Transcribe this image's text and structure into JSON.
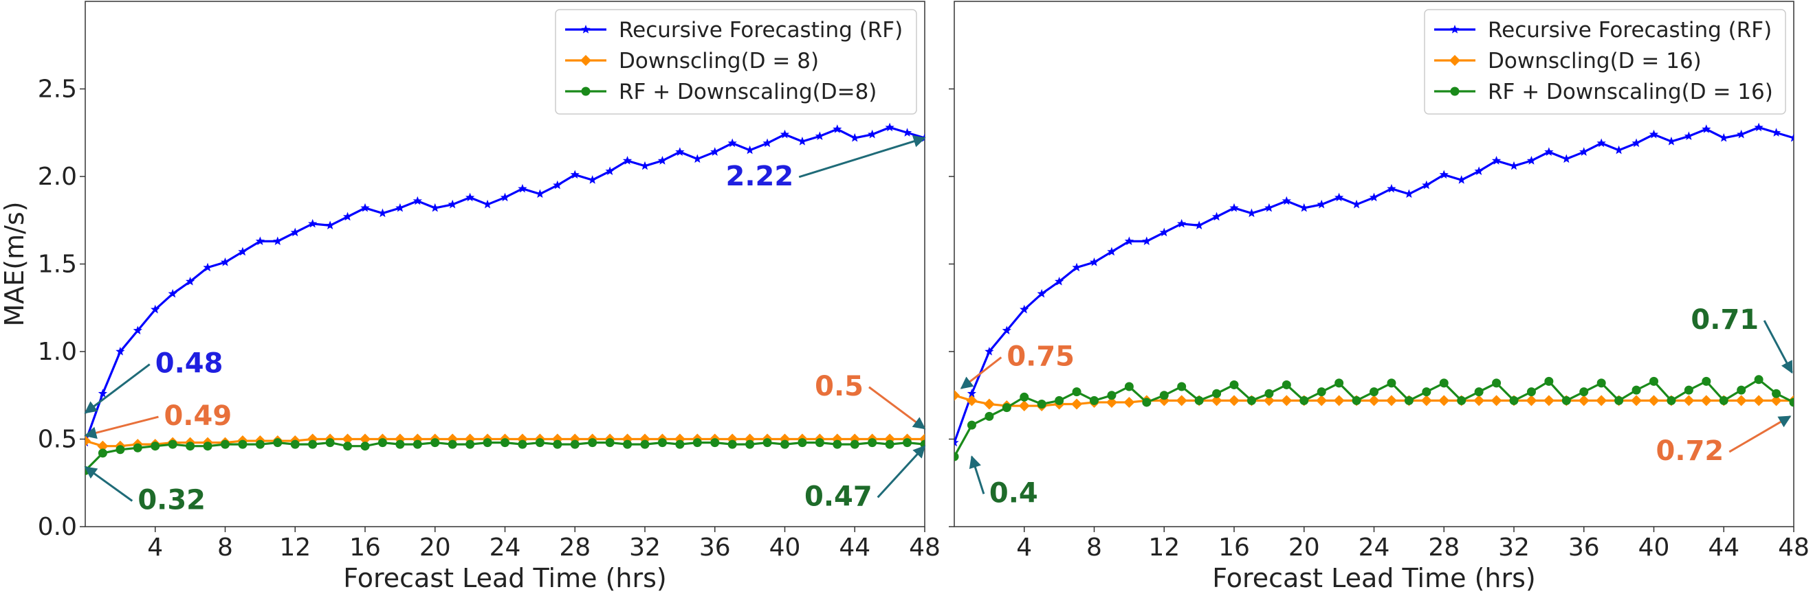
{
  "figure": {
    "ylabel": "MAE(m/s)",
    "colors": {
      "rf": "#0000ff",
      "down": "#ff8c00",
      "combo": "#1a8a1a",
      "ann_rf": "#1f1fe0",
      "ann_orange": "#e8703a",
      "ann_green": "#1e6b2a",
      "arrow": "#1f6b78"
    }
  },
  "chart_data": [
    {
      "type": "line",
      "xlabel": "Forecast Lead Time (hrs)",
      "ylabel": "MAE(m/s)",
      "xlim": [
        0,
        48
      ],
      "ylim": [
        0,
        3.0
      ],
      "xticks": [
        4,
        8,
        12,
        16,
        20,
        24,
        28,
        32,
        36,
        40,
        44,
        48
      ],
      "yticks": [
        0.0,
        0.5,
        1.0,
        1.5,
        2.0,
        2.5
      ],
      "grid": false,
      "legend_position": "top-right",
      "x": [
        0,
        1,
        2,
        3,
        4,
        5,
        6,
        7,
        8,
        9,
        10,
        11,
        12,
        13,
        14,
        15,
        16,
        17,
        18,
        19,
        20,
        21,
        22,
        23,
        24,
        25,
        26,
        27,
        28,
        29,
        30,
        31,
        32,
        33,
        34,
        35,
        36,
        37,
        38,
        39,
        40,
        41,
        42,
        43,
        44,
        45,
        46,
        47,
        48
      ],
      "series": [
        {
          "name": "Recursive Forecasting (RF)",
          "color_key": "rf",
          "marker": "star",
          "values": [
            0.48,
            0.76,
            1.0,
            1.12,
            1.24,
            1.33,
            1.4,
            1.48,
            1.51,
            1.57,
            1.63,
            1.63,
            1.68,
            1.73,
            1.72,
            1.77,
            1.82,
            1.79,
            1.82,
            1.86,
            1.82,
            1.84,
            1.88,
            1.84,
            1.88,
            1.93,
            1.9,
            1.95,
            2.01,
            1.98,
            2.03,
            2.09,
            2.06,
            2.09,
            2.14,
            2.1,
            2.14,
            2.19,
            2.15,
            2.19,
            2.24,
            2.2,
            2.23,
            2.27,
            2.22,
            2.24,
            2.28,
            2.25,
            2.22
          ]
        },
        {
          "name": "Downscling(D = 8)",
          "color_key": "down",
          "marker": "diamond",
          "values": [
            0.49,
            0.46,
            0.46,
            0.47,
            0.47,
            0.48,
            0.48,
            0.48,
            0.48,
            0.49,
            0.49,
            0.49,
            0.49,
            0.5,
            0.5,
            0.5,
            0.5,
            0.5,
            0.5,
            0.5,
            0.5,
            0.5,
            0.5,
            0.5,
            0.5,
            0.5,
            0.5,
            0.5,
            0.5,
            0.5,
            0.5,
            0.5,
            0.5,
            0.5,
            0.5,
            0.5,
            0.5,
            0.5,
            0.5,
            0.5,
            0.5,
            0.5,
            0.5,
            0.5,
            0.5,
            0.5,
            0.5,
            0.5,
            0.5
          ]
        },
        {
          "name": "RF + Downscaling(D=8)",
          "color_key": "combo",
          "marker": "circle",
          "values": [
            0.32,
            0.42,
            0.44,
            0.45,
            0.46,
            0.47,
            0.46,
            0.46,
            0.47,
            0.47,
            0.47,
            0.48,
            0.47,
            0.47,
            0.48,
            0.46,
            0.46,
            0.48,
            0.47,
            0.47,
            0.48,
            0.47,
            0.47,
            0.48,
            0.48,
            0.47,
            0.48,
            0.47,
            0.47,
            0.48,
            0.48,
            0.47,
            0.47,
            0.48,
            0.47,
            0.48,
            0.48,
            0.47,
            0.47,
            0.48,
            0.47,
            0.48,
            0.48,
            0.47,
            0.47,
            0.48,
            0.47,
            0.48,
            0.47
          ]
        }
      ],
      "annotations": [
        {
          "text": "0.48",
          "color_key": "ann_rf",
          "point": [
            0,
            0.65
          ],
          "label": [
            4,
            0.88
          ],
          "anchor": "start"
        },
        {
          "text": "0.49",
          "color_key": "ann_orange",
          "point": [
            0,
            0.52
          ],
          "label": [
            4.5,
            0.58
          ],
          "anchor": "start"
        },
        {
          "text": "0.32",
          "color_key": "ann_green",
          "point": [
            0,
            0.34
          ],
          "label": [
            3,
            0.1
          ],
          "anchor": "start"
        },
        {
          "text": "2.22",
          "color_key": "ann_rf",
          "point": [
            48,
            2.22
          ],
          "label": [
            40.5,
            1.95
          ],
          "anchor": "end"
        },
        {
          "text": "0.5",
          "color_key": "ann_orange",
          "point": [
            48,
            0.56
          ],
          "label": [
            44.5,
            0.75
          ],
          "anchor": "end"
        },
        {
          "text": "0.47",
          "color_key": "ann_green",
          "point": [
            48,
            0.46
          ],
          "label": [
            45,
            0.12
          ],
          "anchor": "end"
        }
      ]
    },
    {
      "type": "line",
      "xlabel": "Forecast Lead Time (hrs)",
      "ylabel": "",
      "xlim": [
        0,
        48
      ],
      "ylim": [
        0,
        3.0
      ],
      "xticks": [
        4,
        8,
        12,
        16,
        20,
        24,
        28,
        32,
        36,
        40,
        44,
        48
      ],
      "yticks": [
        0.0,
        0.5,
        1.0,
        1.5,
        2.0,
        2.5
      ],
      "grid": false,
      "legend_position": "top-right",
      "x": [
        0,
        1,
        2,
        3,
        4,
        5,
        6,
        7,
        8,
        9,
        10,
        11,
        12,
        13,
        14,
        15,
        16,
        17,
        18,
        19,
        20,
        21,
        22,
        23,
        24,
        25,
        26,
        27,
        28,
        29,
        30,
        31,
        32,
        33,
        34,
        35,
        36,
        37,
        38,
        39,
        40,
        41,
        42,
        43,
        44,
        45,
        46,
        47,
        48
      ],
      "series": [
        {
          "name": "Recursive Forecasting (RF)",
          "color_key": "rf",
          "marker": "star",
          "values": [
            0.48,
            0.76,
            1.0,
            1.12,
            1.24,
            1.33,
            1.4,
            1.48,
            1.51,
            1.57,
            1.63,
            1.63,
            1.68,
            1.73,
            1.72,
            1.77,
            1.82,
            1.79,
            1.82,
            1.86,
            1.82,
            1.84,
            1.88,
            1.84,
            1.88,
            1.93,
            1.9,
            1.95,
            2.01,
            1.98,
            2.03,
            2.09,
            2.06,
            2.09,
            2.14,
            2.1,
            2.14,
            2.19,
            2.15,
            2.19,
            2.24,
            2.2,
            2.23,
            2.27,
            2.22,
            2.24,
            2.28,
            2.25,
            2.22
          ]
        },
        {
          "name": "Downscling(D = 16)",
          "color_key": "down",
          "marker": "diamond",
          "values": [
            0.75,
            0.72,
            0.7,
            0.69,
            0.69,
            0.69,
            0.7,
            0.7,
            0.71,
            0.71,
            0.71,
            0.72,
            0.72,
            0.72,
            0.72,
            0.72,
            0.72,
            0.72,
            0.72,
            0.72,
            0.72,
            0.72,
            0.72,
            0.72,
            0.72,
            0.72,
            0.72,
            0.72,
            0.72,
            0.72,
            0.72,
            0.72,
            0.72,
            0.72,
            0.72,
            0.72,
            0.72,
            0.72,
            0.72,
            0.72,
            0.72,
            0.72,
            0.72,
            0.72,
            0.72,
            0.72,
            0.72,
            0.72,
            0.72
          ]
        },
        {
          "name": "RF + Downscaling(D = 16)",
          "color_key": "combo",
          "marker": "circle",
          "values": [
            0.4,
            0.58,
            0.63,
            0.68,
            0.74,
            0.7,
            0.72,
            0.77,
            0.72,
            0.75,
            0.8,
            0.71,
            0.75,
            0.8,
            0.72,
            0.76,
            0.81,
            0.72,
            0.76,
            0.81,
            0.72,
            0.77,
            0.82,
            0.72,
            0.77,
            0.82,
            0.72,
            0.77,
            0.82,
            0.72,
            0.77,
            0.82,
            0.72,
            0.77,
            0.83,
            0.72,
            0.77,
            0.82,
            0.72,
            0.78,
            0.83,
            0.72,
            0.78,
            0.83,
            0.72,
            0.78,
            0.84,
            0.76,
            0.71
          ]
        }
      ],
      "annotations": [
        {
          "text": "0.75",
          "color_key": "ann_orange",
          "point": [
            0.4,
            0.79
          ],
          "label": [
            3.0,
            0.92
          ],
          "anchor": "start"
        },
        {
          "text": "0.4",
          "color_key": "ann_green",
          "point": [
            1.0,
            0.4
          ],
          "label": [
            2.0,
            0.14
          ],
          "anchor": "start"
        },
        {
          "text": "0.71",
          "color_key": "ann_green",
          "point": [
            47.9,
            0.88
          ],
          "label": [
            46.0,
            1.13
          ],
          "anchor": "end"
        },
        {
          "text": "0.72",
          "color_key": "ann_orange",
          "point": [
            47.8,
            0.63
          ],
          "label": [
            44.0,
            0.38
          ],
          "anchor": "end"
        }
      ]
    }
  ]
}
